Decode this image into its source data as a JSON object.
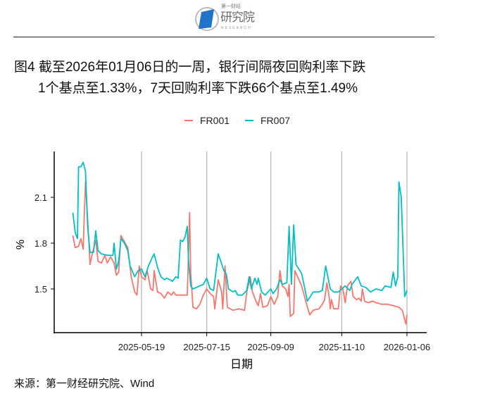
{
  "header": {
    "logo_text": "第一财经研究院",
    "logo_main": "研究院",
    "logo_small": "第一财经",
    "logo_sub": "RESEARCH"
  },
  "title": {
    "line1": "图4  截至2026年01月06日的一周，银行间隔夜回购利率下跌",
    "line2": "1个基点至1.33%，7天回购利率下跌66个基点至1.49%"
  },
  "source": "来源：第一财经研究院、Wind",
  "chart_data": {
    "type": "line",
    "title": "图4  截至2026年01月06日的一周，银行间隔夜回购利率下跌1个基点至1.33%，7天回购利率下跌66个基点至1.49%",
    "xlabel": "日期",
    "ylabel": "%",
    "xlim": [
      "2025-03-20",
      "2026-01-06"
    ],
    "ylim": [
      1.2,
      2.4
    ],
    "xticks": [
      "2025-05-19",
      "2025-07-15",
      "2025-09-09",
      "2025-11-10",
      "2026-01-06"
    ],
    "yticks": [
      1.5,
      1.8,
      2.1
    ],
    "ytick_labels": [
      "1.5",
      "1.8",
      "2.1"
    ],
    "grid": "vertical major lines at x ticks",
    "legend_position": "top",
    "series": [
      {
        "name": "FR001",
        "color": "#F8766D",
        "points": [
          [
            "2025-03-20",
            1.85
          ],
          [
            "2025-03-22",
            1.77
          ],
          [
            "2025-03-25",
            1.78
          ],
          [
            "2025-03-27",
            1.83
          ],
          [
            "2025-03-29",
            1.76
          ],
          [
            "2025-03-31",
            2.2
          ],
          [
            "2025-04-02",
            1.95
          ],
          [
            "2025-04-04",
            1.66
          ],
          [
            "2025-04-06",
            1.73
          ],
          [
            "2025-04-09",
            1.82
          ],
          [
            "2025-04-11",
            1.68
          ],
          [
            "2025-04-14",
            1.67
          ],
          [
            "2025-04-17",
            1.72
          ],
          [
            "2025-04-19",
            1.67
          ],
          [
            "2025-04-22",
            1.71
          ],
          [
            "2025-04-25",
            1.67
          ],
          [
            "2025-04-27",
            1.59
          ],
          [
            "2025-04-29",
            1.61
          ],
          [
            "2025-05-01",
            1.85
          ],
          [
            "2025-05-04",
            1.81
          ],
          [
            "2025-05-07",
            1.77
          ],
          [
            "2025-05-10",
            1.58
          ],
          [
            "2025-05-13",
            1.48
          ],
          [
            "2025-05-15",
            1.46
          ],
          [
            "2025-05-17",
            1.65
          ],
          [
            "2025-05-19",
            1.58
          ],
          [
            "2025-05-22",
            1.56
          ],
          [
            "2025-05-24",
            1.62
          ],
          [
            "2025-05-27",
            1.5
          ],
          [
            "2025-05-29",
            1.49
          ],
          [
            "2025-05-30",
            1.62
          ],
          [
            "2025-06-02",
            1.48
          ],
          [
            "2025-06-05",
            1.47
          ],
          [
            "2025-06-08",
            1.44
          ],
          [
            "2025-06-11",
            1.48
          ],
          [
            "2025-06-14",
            1.46
          ],
          [
            "2025-06-16",
            1.48
          ],
          [
            "2025-06-18",
            1.46
          ],
          [
            "2025-06-28",
            1.46
          ],
          [
            "2025-06-30",
            2.0
          ],
          [
            "2025-07-01",
            1.6
          ],
          [
            "2025-07-03",
            1.38
          ],
          [
            "2025-07-06",
            1.37
          ],
          [
            "2025-07-09",
            1.4
          ],
          [
            "2025-07-12",
            1.46
          ],
          [
            "2025-07-15",
            1.5
          ],
          [
            "2025-07-18",
            1.47
          ],
          [
            "2025-07-21",
            1.45
          ],
          [
            "2025-07-22",
            1.37
          ],
          [
            "2025-07-25",
            1.56
          ],
          [
            "2025-07-28",
            1.48
          ],
          [
            "2025-07-29",
            1.37
          ],
          [
            "2025-07-31",
            1.65
          ],
          [
            "2025-08-02",
            1.38
          ],
          [
            "2025-08-07",
            1.36
          ],
          [
            "2025-08-12",
            1.37
          ],
          [
            "2025-08-17",
            1.36
          ],
          [
            "2025-08-19",
            1.48
          ],
          [
            "2025-08-22",
            1.58
          ],
          [
            "2025-08-24",
            1.48
          ],
          [
            "2025-08-27",
            1.42
          ],
          [
            "2025-08-29",
            1.39
          ],
          [
            "2025-08-31",
            1.47
          ],
          [
            "2025-09-02",
            1.38
          ],
          [
            "2025-09-06",
            1.39
          ],
          [
            "2025-09-09",
            1.45
          ],
          [
            "2025-09-12",
            1.4
          ],
          [
            "2025-09-15",
            1.45
          ],
          [
            "2025-09-17",
            1.62
          ],
          [
            "2025-09-19",
            1.52
          ],
          [
            "2025-09-22",
            1.5
          ],
          [
            "2025-09-24",
            1.45
          ],
          [
            "2025-09-25",
            1.53
          ],
          [
            "2025-09-26",
            1.32
          ],
          [
            "2025-09-29",
            1.34
          ],
          [
            "2025-09-30",
            1.62
          ],
          [
            "2025-10-06",
            1.52
          ],
          [
            "2025-10-11",
            1.38
          ],
          [
            "2025-10-13",
            1.33
          ],
          [
            "2025-10-16",
            1.36
          ],
          [
            "2025-10-21",
            1.37
          ],
          [
            "2025-10-24",
            1.4
          ],
          [
            "2025-10-26",
            1.43
          ],
          [
            "2025-10-28",
            1.54
          ],
          [
            "2025-10-30",
            1.45
          ],
          [
            "2025-10-31",
            1.37
          ],
          [
            "2025-11-01",
            1.43
          ],
          [
            "2025-11-03",
            1.37
          ],
          [
            "2025-11-07",
            1.37
          ],
          [
            "2025-11-09",
            1.52
          ],
          [
            "2025-11-11",
            1.5
          ],
          [
            "2025-11-13",
            1.41
          ],
          [
            "2025-11-15",
            1.52
          ],
          [
            "2025-11-18",
            1.55
          ],
          [
            "2025-11-20",
            1.45
          ],
          [
            "2025-11-23",
            1.43
          ],
          [
            "2025-11-25",
            1.44
          ],
          [
            "2025-11-27",
            1.42
          ],
          [
            "2025-11-28",
            1.5
          ],
          [
            "2025-11-30",
            1.42
          ],
          [
            "2025-12-03",
            1.41
          ],
          [
            "2025-12-07",
            1.42
          ],
          [
            "2025-12-10",
            1.41
          ],
          [
            "2025-12-15",
            1.4
          ],
          [
            "2025-12-20",
            1.4
          ],
          [
            "2025-12-25",
            1.39
          ],
          [
            "2025-12-30",
            1.38
          ],
          [
            "2026-01-02",
            1.36
          ],
          [
            "2026-01-05",
            1.27
          ],
          [
            "2026-01-06",
            1.33
          ]
        ]
      },
      {
        "name": "FR007",
        "color": "#00BFC4",
        "points": [
          [
            "2025-03-20",
            2.0
          ],
          [
            "2025-03-22",
            1.87
          ],
          [
            "2025-03-24",
            1.83
          ],
          [
            "2025-03-25",
            2.3
          ],
          [
            "2025-03-27",
            2.3
          ],
          [
            "2025-03-29",
            2.33
          ],
          [
            "2025-03-31",
            2.27
          ],
          [
            "2025-04-02",
            1.9
          ],
          [
            "2025-04-04",
            1.74
          ],
          [
            "2025-04-07",
            1.74
          ],
          [
            "2025-04-09",
            1.88
          ],
          [
            "2025-04-11",
            1.75
          ],
          [
            "2025-04-14",
            1.73
          ],
          [
            "2025-04-19",
            1.72
          ],
          [
            "2025-04-24",
            1.72
          ],
          [
            "2025-04-25",
            1.8
          ],
          [
            "2025-04-27",
            1.63
          ],
          [
            "2025-04-29",
            1.68
          ],
          [
            "2025-05-01",
            1.83
          ],
          [
            "2025-05-04",
            1.8
          ],
          [
            "2025-05-07",
            1.75
          ],
          [
            "2025-05-09",
            1.65
          ],
          [
            "2025-05-13",
            1.58
          ],
          [
            "2025-05-16",
            1.62
          ],
          [
            "2025-05-19",
            1.63
          ],
          [
            "2025-05-22",
            1.58
          ],
          [
            "2025-05-25",
            1.65
          ],
          [
            "2025-05-28",
            1.7
          ],
          [
            "2025-05-30",
            1.73
          ],
          [
            "2025-06-02",
            1.64
          ],
          [
            "2025-06-05",
            1.58
          ],
          [
            "2025-06-08",
            1.56
          ],
          [
            "2025-06-10",
            1.57
          ],
          [
            "2025-06-13",
            1.56
          ],
          [
            "2025-06-15",
            1.55
          ],
          [
            "2025-06-18",
            1.58
          ],
          [
            "2025-06-20",
            1.57
          ],
          [
            "2025-06-22",
            1.82
          ],
          [
            "2025-06-24",
            1.81
          ],
          [
            "2025-06-26",
            1.84
          ],
          [
            "2025-06-28",
            1.91
          ],
          [
            "2025-06-29",
            1.7
          ],
          [
            "2025-07-01",
            1.52
          ],
          [
            "2025-07-03",
            1.5
          ],
          [
            "2025-07-06",
            1.51
          ],
          [
            "2025-07-09",
            1.52
          ],
          [
            "2025-07-12",
            1.53
          ],
          [
            "2025-07-15",
            1.57
          ],
          [
            "2025-07-18",
            1.5
          ],
          [
            "2025-07-21",
            1.49
          ],
          [
            "2025-07-25",
            1.73
          ],
          [
            "2025-07-30",
            1.62
          ],
          [
            "2025-08-01",
            1.6
          ],
          [
            "2025-08-03",
            1.5
          ],
          [
            "2025-08-07",
            1.48
          ],
          [
            "2025-08-09",
            1.49
          ],
          [
            "2025-08-11",
            1.46
          ],
          [
            "2025-08-15",
            1.46
          ],
          [
            "2025-08-19",
            1.49
          ],
          [
            "2025-08-21",
            1.58
          ],
          [
            "2025-08-23",
            1.5
          ],
          [
            "2025-08-26",
            1.57
          ],
          [
            "2025-08-28",
            1.53
          ],
          [
            "2025-08-29",
            1.57
          ],
          [
            "2025-09-01",
            1.48
          ],
          [
            "2025-09-04",
            1.46
          ],
          [
            "2025-09-09",
            1.5
          ],
          [
            "2025-09-11",
            1.47
          ],
          [
            "2025-09-14",
            1.5
          ],
          [
            "2025-09-17",
            1.56
          ],
          [
            "2025-09-19",
            1.53
          ],
          [
            "2025-09-23",
            1.54
          ],
          [
            "2025-09-25",
            1.91
          ],
          [
            "2025-09-27",
            1.53
          ],
          [
            "2025-09-29",
            1.92
          ],
          [
            "2025-10-01",
            1.66
          ],
          [
            "2025-10-06",
            1.6
          ],
          [
            "2025-10-11",
            1.42
          ],
          [
            "2025-10-16",
            1.48
          ],
          [
            "2025-10-21",
            1.48
          ],
          [
            "2025-10-24",
            1.49
          ],
          [
            "2025-10-27",
            1.65
          ],
          [
            "2025-10-31",
            1.5
          ],
          [
            "2025-11-03",
            1.48
          ],
          [
            "2025-11-07",
            1.48
          ],
          [
            "2025-11-10",
            1.5
          ],
          [
            "2025-11-13",
            1.52
          ],
          [
            "2025-11-17",
            1.49
          ],
          [
            "2025-11-19",
            1.53
          ],
          [
            "2025-11-24",
            1.58
          ],
          [
            "2025-11-27",
            1.52
          ],
          [
            "2025-12-01",
            1.51
          ],
          [
            "2025-12-05",
            1.48
          ],
          [
            "2025-12-10",
            1.5
          ],
          [
            "2025-12-15",
            1.49
          ],
          [
            "2025-12-18",
            1.52
          ],
          [
            "2025-12-23",
            1.51
          ],
          [
            "2025-12-25",
            1.61
          ],
          [
            "2025-12-27",
            1.52
          ],
          [
            "2025-12-29",
            1.58
          ],
          [
            "2025-12-30",
            2.2
          ],
          [
            "2026-01-01",
            2.1
          ],
          [
            "2026-01-04",
            1.45
          ],
          [
            "2026-01-06",
            1.49
          ]
        ]
      }
    ]
  }
}
